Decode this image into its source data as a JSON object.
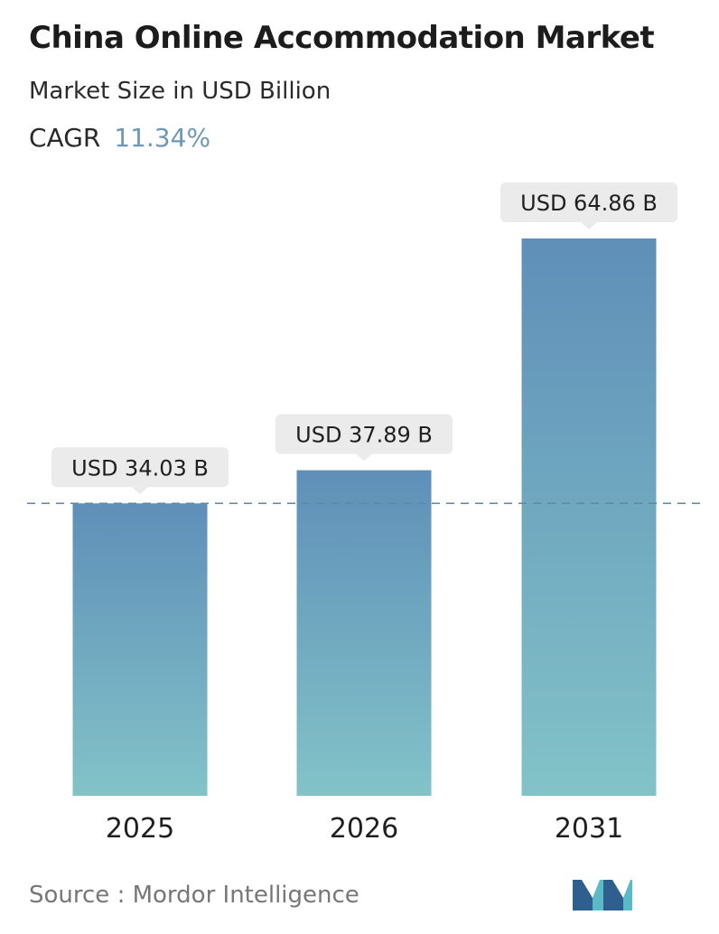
{
  "header": {
    "title": "China Online Accommodation Market",
    "subtitle": "Market Size in USD Billion",
    "cagr_label": "CAGR",
    "cagr_value": "11.34%"
  },
  "chart_data": {
    "type": "bar",
    "categories": [
      "2025",
      "2026",
      "2031"
    ],
    "values": [
      34.03,
      37.89,
      64.86
    ],
    "value_labels": [
      "USD 34.03 B",
      "USD 37.89 B",
      "USD 64.86 B"
    ],
    "title": "China Online Accommodation Market",
    "subtitle": "Market Size in USD Billion",
    "xlabel": "",
    "ylabel": "",
    "reference_line": 34.03,
    "grid": false,
    "legend": "none"
  },
  "footer": {
    "source": "Source :  Mordor Intelligence",
    "logo_icon": "mordor-intelligence-logo-icon"
  },
  "colors": {
    "bar_top": "#5f8fb8",
    "bar_bottom": "#82c3c8",
    "label_bg": "#ebebeb",
    "dashed_line": "#5a8aa6",
    "cagr_accent": "#6f98b6",
    "logo_dark": "#2f5f8f",
    "logo_light": "#5cb9c6"
  }
}
